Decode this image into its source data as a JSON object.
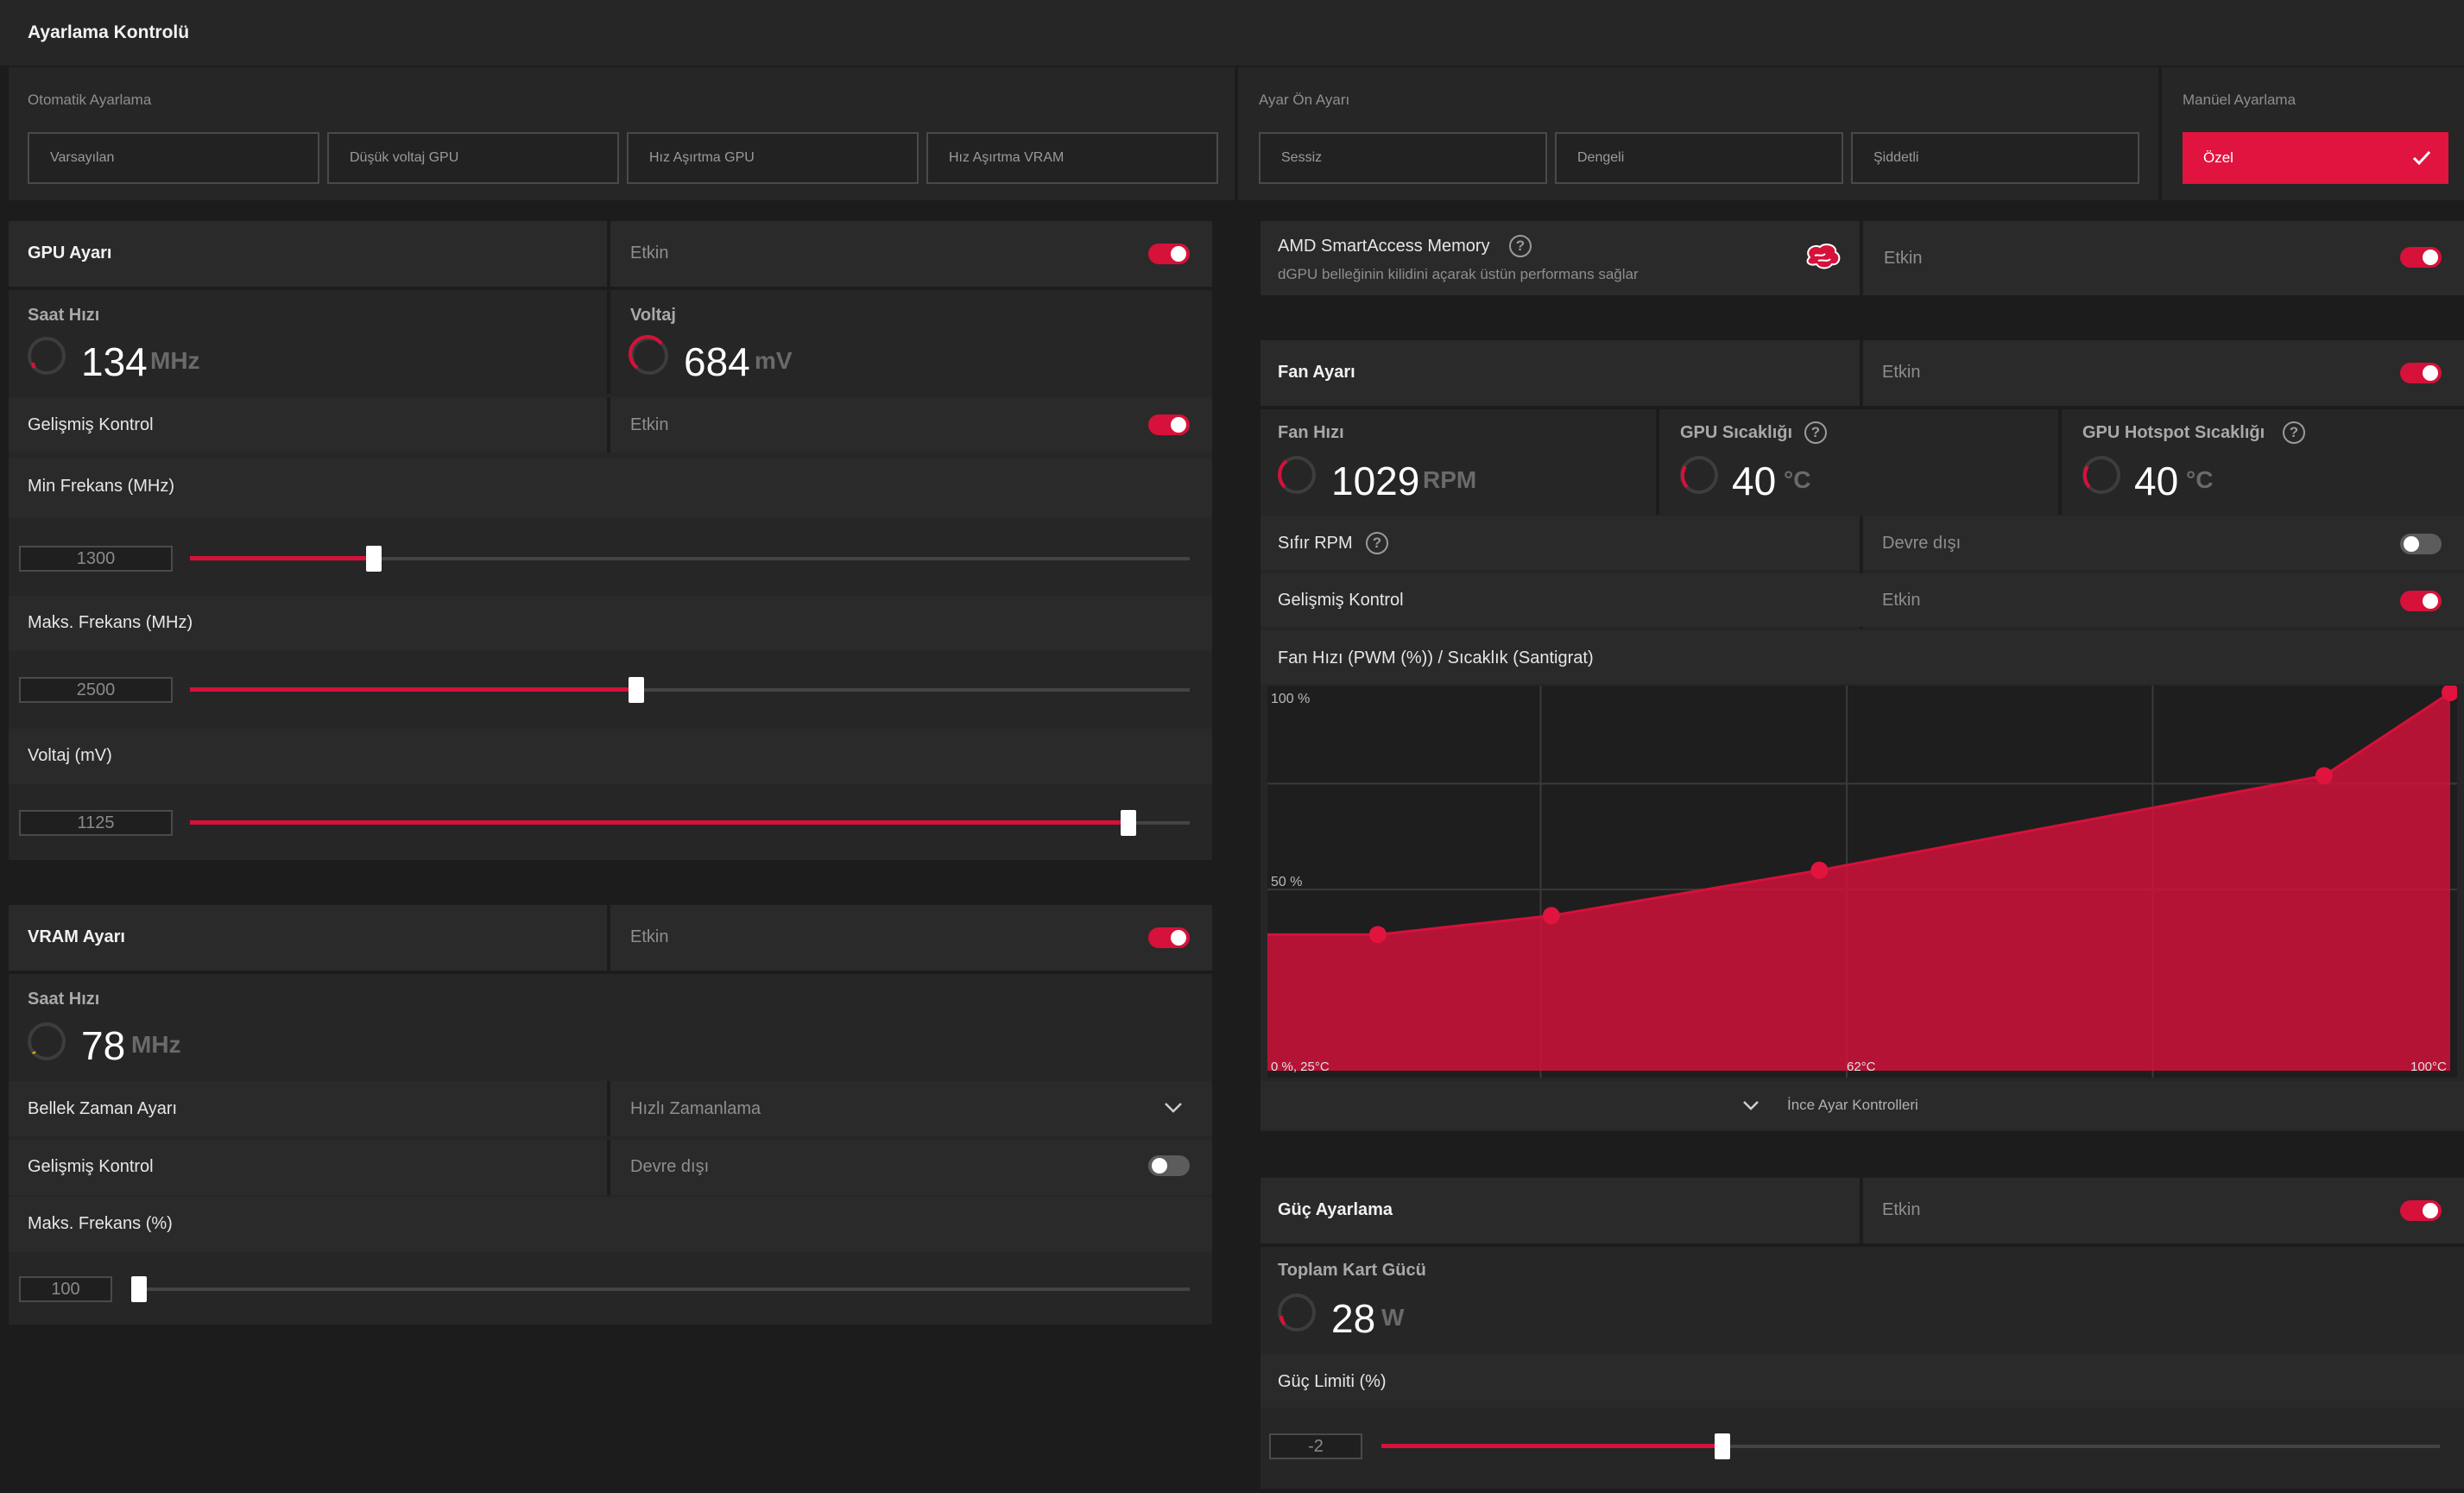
{
  "title": "Ayarlama Kontrolü",
  "auto_tuning": {
    "label": "Otomatik Ayarlama",
    "buttons": [
      "Varsayılan",
      "Düşük voltaj GPU",
      "Hız Aşırtma GPU",
      "Hız Aşırtma VRAM"
    ]
  },
  "preset": {
    "label": "Ayar Ön Ayarı",
    "buttons": [
      "Sessiz",
      "Dengeli",
      "Şiddetli"
    ]
  },
  "manual": {
    "label": "Manüel Ayarlama",
    "selected": "Özel"
  },
  "gpu": {
    "title": "GPU Ayarı",
    "state": "Etkin",
    "clock_label": "Saat Hızı",
    "clock_value": "134",
    "clock_unit": "MHz",
    "voltage_label": "Voltaj",
    "voltage_value": "684",
    "voltage_unit": "mV",
    "adv_label": "Gelişmiş Kontrol",
    "adv_state": "Etkin",
    "min_freq_label": "Min Frekans (MHz)",
    "min_freq_value": "1300",
    "min_freq_fraction": 0.183,
    "max_freq_label": "Maks. Frekans (MHz)",
    "max_freq_value": "2500",
    "max_freq_fraction": 0.447,
    "volt_label": "Voltaj (mV)",
    "volt_value": "1125",
    "volt_fraction": 0.937
  },
  "vram": {
    "title": "VRAM Ayarı",
    "state": "Etkin",
    "clock_label": "Saat Hızı",
    "clock_value": "78",
    "clock_unit": "MHz",
    "timing_label": "Bellek Zaman Ayarı",
    "timing_value": "Hızlı Zamanlama",
    "adv_label": "Gelişmiş Kontrol",
    "adv_state": "Devre dışı",
    "max_freq_label": "Maks. Frekans (%)",
    "max_freq_value": "100",
    "max_freq_fraction": 0.0
  },
  "sam": {
    "title": "AMD SmartAccess Memory",
    "desc": "dGPU belleğinin kilidini açarak üstün performans sağlar",
    "state": "Etkin"
  },
  "fan": {
    "title": "Fan Ayarı",
    "state": "Etkin",
    "speed_label": "Fan Hızı",
    "speed_value": "1029",
    "speed_unit": "RPM",
    "temp_label": "GPU Sıcaklığı",
    "temp_value": "40",
    "temp_unit": "°C",
    "hotspot_label": "GPU Hotspot Sıcaklığı",
    "hotspot_value": "40",
    "hotspot_unit": "°C",
    "zero_rpm_label": "Sıfır RPM",
    "zero_rpm_state": "Devre dışı",
    "adv_label": "Gelişmiş Kontrol",
    "adv_state": "Etkin",
    "curve_title": "Fan Hızı (PWM (%)) / Sıcaklık (Santigrat)",
    "fine_tune_label": "İnce Ayar Kontrolleri"
  },
  "chart_data": {
    "type": "area",
    "title": "Fan Hızı (PWM (%)) / Sıcaklık (Santigrat)",
    "y_tick_labels": [
      "100 %",
      "50 %"
    ],
    "x_tick_labels": [
      "0 %, 25°C",
      "62°C",
      "100°C"
    ],
    "xlim": [
      25,
      100
    ],
    "ylim": [
      0,
      100
    ],
    "points": [
      {
        "x": 32,
        "y": 36
      },
      {
        "x": 43,
        "y": 41
      },
      {
        "x": 60,
        "y": 53
      },
      {
        "x": 92,
        "y": 78
      },
      {
        "x": 100,
        "y": 100
      }
    ],
    "color": "#d6113a"
  },
  "power": {
    "title": "Güç Ayarlama",
    "state": "Etkin",
    "total_label": "Toplam Kart Gücü",
    "total_value": "28",
    "total_unit": "W",
    "limit_label": "Güç Limiti (%)",
    "limit_value": "-2",
    "limit_fraction": 0.322
  },
  "colors": {
    "accent": "#d6113a",
    "background": "#1c1c1c",
    "panel": "#262626"
  }
}
